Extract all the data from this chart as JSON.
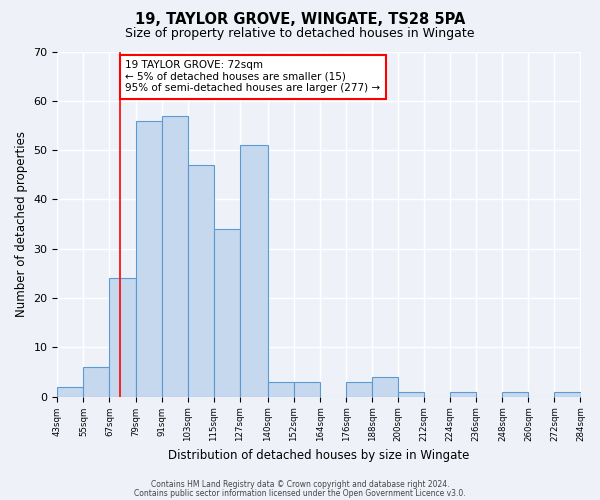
{
  "title": "19, TAYLOR GROVE, WINGATE, TS28 5PA",
  "subtitle": "Size of property relative to detached houses in Wingate",
  "xlabel": "Distribution of detached houses by size in Wingate",
  "ylabel": "Number of detached properties",
  "footnote1": "Contains HM Land Registry data © Crown copyright and database right 2024.",
  "footnote2": "Contains public sector information licensed under the Open Government Licence v3.0.",
  "bar_edges": [
    43,
    55,
    67,
    79,
    91,
    103,
    115,
    127,
    140,
    152,
    164,
    176,
    188,
    200,
    212,
    224,
    236,
    248,
    260,
    272,
    284
  ],
  "bar_heights": [
    2,
    6,
    24,
    56,
    57,
    47,
    34,
    51,
    3,
    3,
    0,
    3,
    4,
    1,
    0,
    1,
    0,
    1,
    0,
    1
  ],
  "bar_color": "#c5d8ed",
  "bar_edge_color": "#5b9bd5",
  "red_line_x": 72,
  "ylim": [
    0,
    70
  ],
  "yticks": [
    0,
    10,
    20,
    30,
    40,
    50,
    60,
    70
  ],
  "annotation_title": "19 TAYLOR GROVE: 72sqm",
  "annotation_line1": "← 5% of detached houses are smaller (15)",
  "annotation_line2": "95% of semi-detached houses are larger (277) →",
  "background_color": "#eef2f8",
  "grid_color": "#ffffff",
  "tick_labels": [
    "43sqm",
    "55sqm",
    "67sqm",
    "79sqm",
    "91sqm",
    "103sqm",
    "115sqm",
    "127sqm",
    "140sqm",
    "152sqm",
    "164sqm",
    "176sqm",
    "188sqm",
    "200sqm",
    "212sqm",
    "224sqm",
    "236sqm",
    "248sqm",
    "260sqm",
    "272sqm",
    "284sqm"
  ]
}
